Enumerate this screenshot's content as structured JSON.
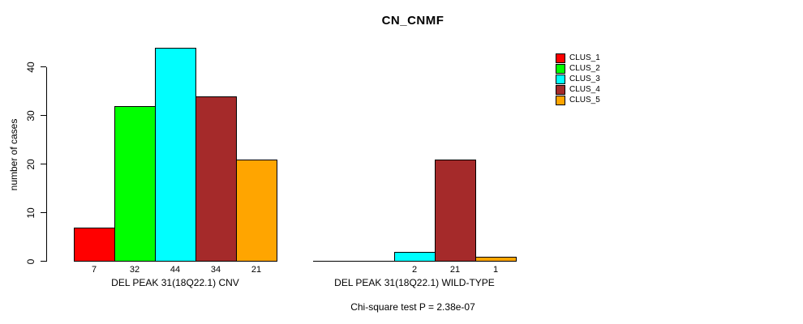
{
  "title": "CN_CNMF",
  "chart_data": {
    "type": "bar",
    "title": "CN_CNMF",
    "ylabel": "number of cases",
    "xlabel": "",
    "yticks": [
      0,
      10,
      20,
      30,
      40
    ],
    "ylim": [
      0,
      44
    ],
    "grid": false,
    "legend_position": "top-right",
    "series": [
      {
        "name": "CLUS_1",
        "color": "#FF0000"
      },
      {
        "name": "CLUS_2",
        "color": "#00FF00"
      },
      {
        "name": "CLUS_3",
        "color": "#00FFFF"
      },
      {
        "name": "CLUS_4",
        "color": "#A52A2A"
      },
      {
        "name": "CLUS_5",
        "color": "#FFA500"
      }
    ],
    "groups": [
      {
        "label": "DEL PEAK 31(18Q22.1) CNV",
        "values": [
          7,
          32,
          44,
          34,
          21
        ]
      },
      {
        "label": "DEL PEAK 31(18Q22.1) WILD-TYPE",
        "values": [
          0,
          0,
          2,
          21,
          1
        ]
      }
    ]
  },
  "footer": {
    "stat_text": "Chi-square test P = 2.38e-07"
  }
}
